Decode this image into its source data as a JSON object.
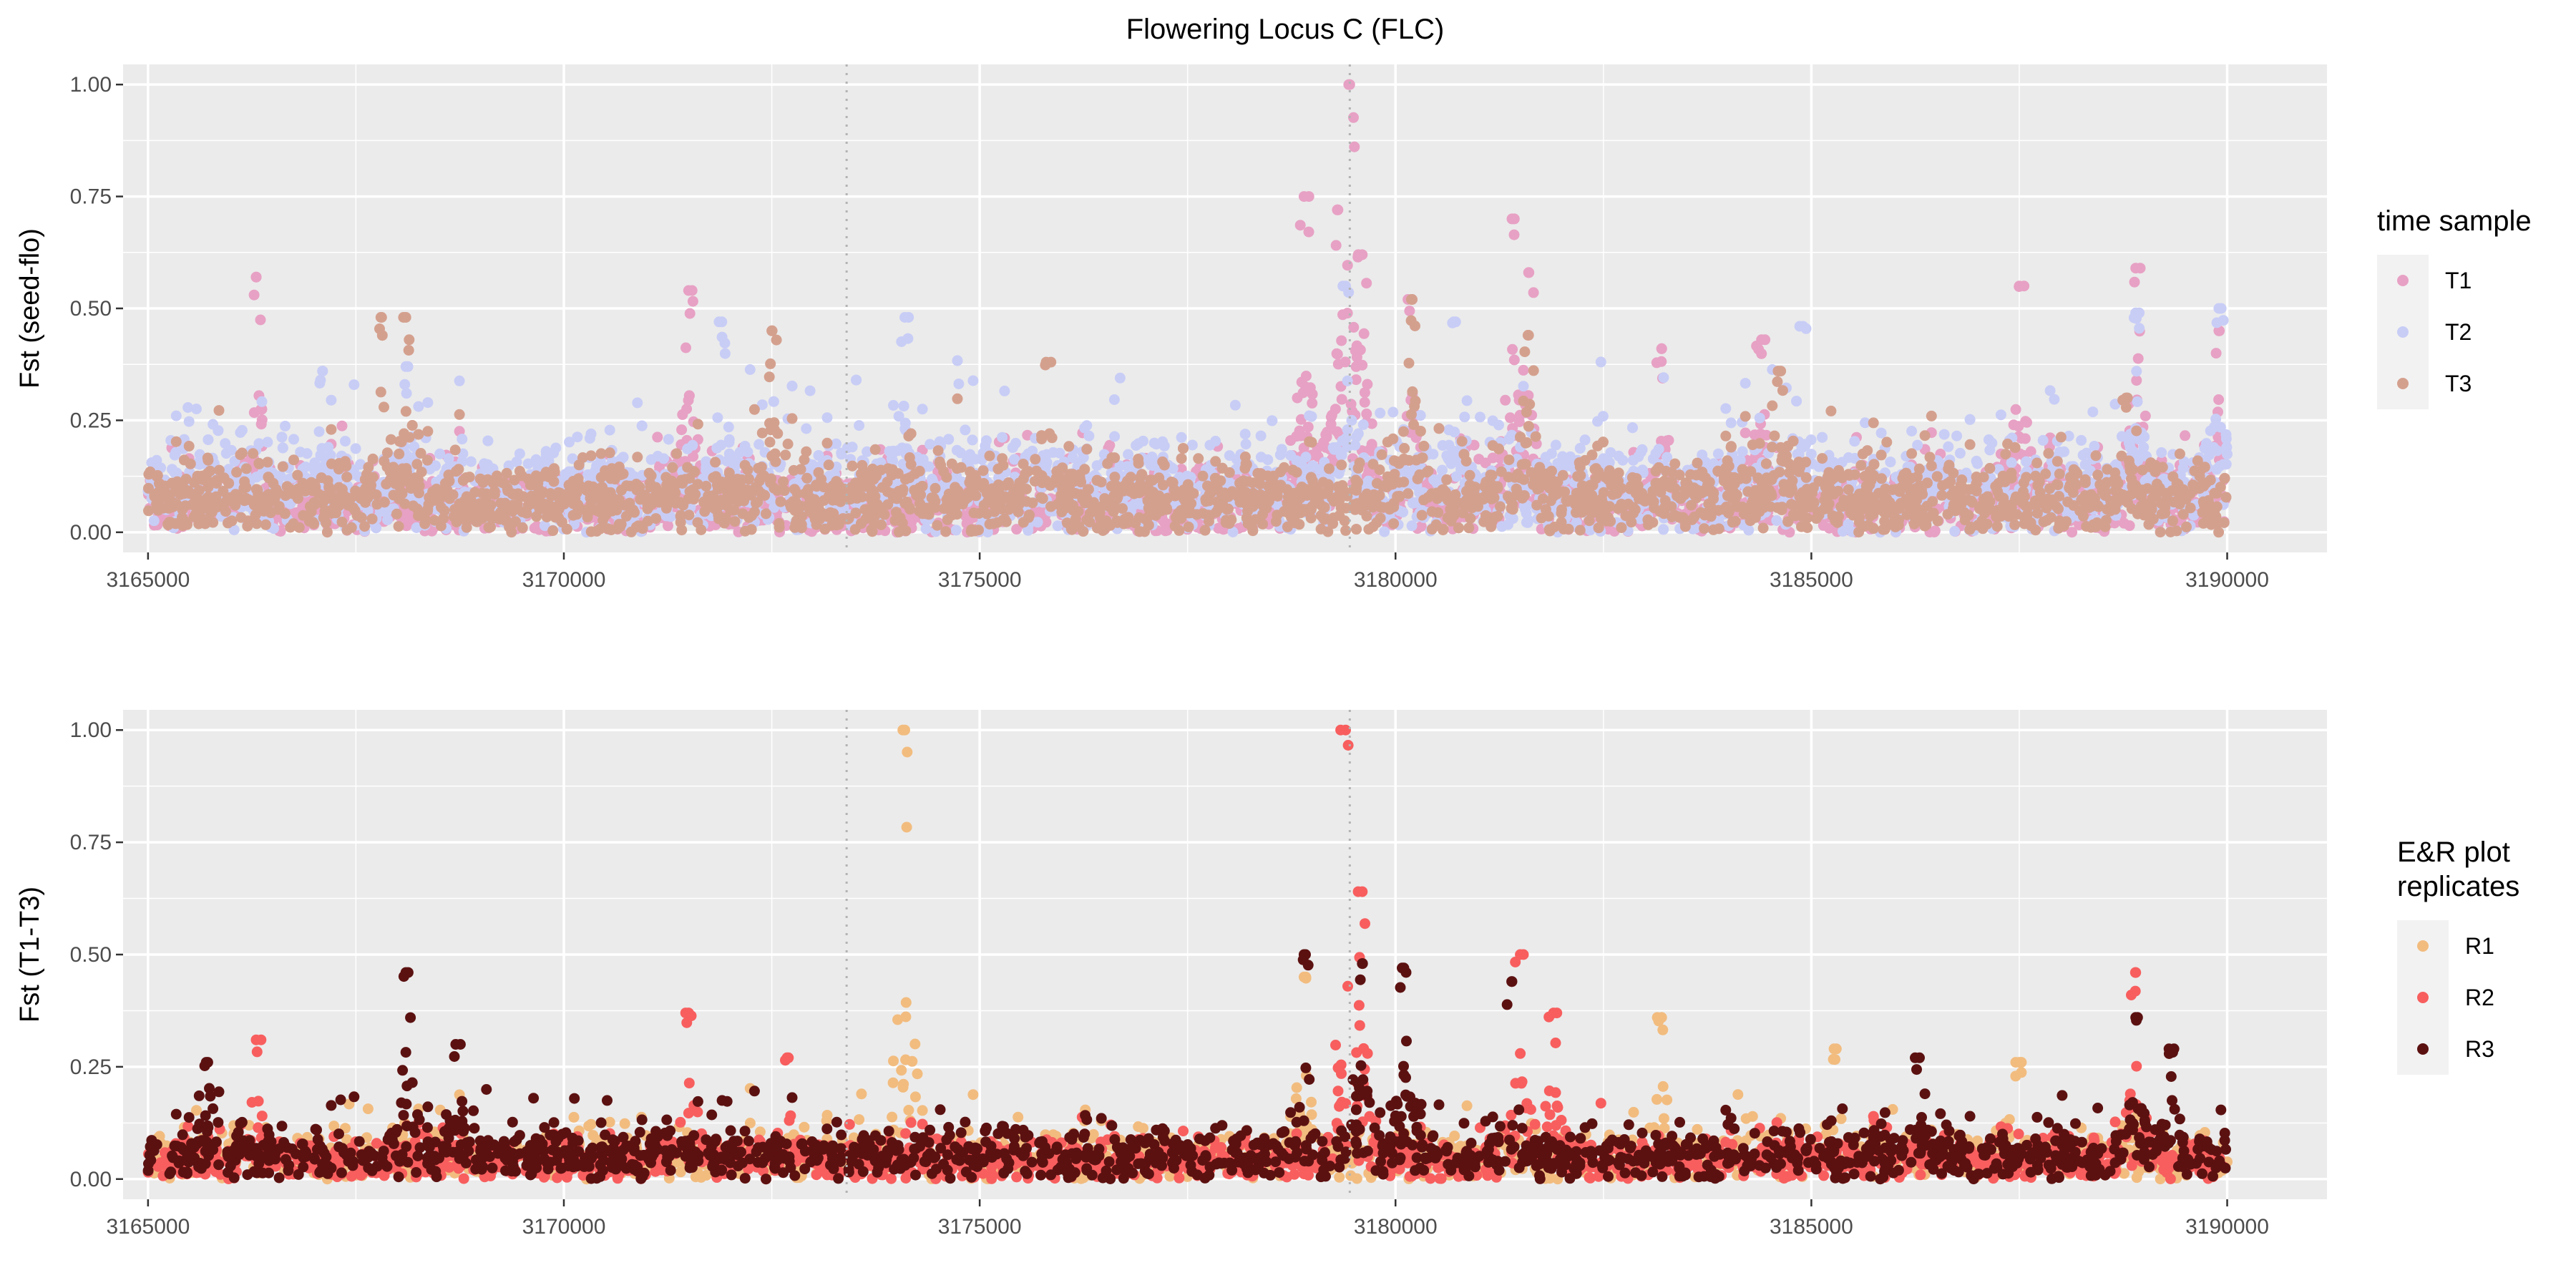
{
  "title": "Flowering Locus C (FLC)",
  "chart_data": [
    {
      "type": "scatter",
      "panel": "top",
      "ylabel": "Fst (seed-flo)",
      "xlabel": "",
      "xlim": [
        3164700,
        3191200
      ],
      "ylim": [
        -0.045,
        1.045
      ],
      "x_ticks": [
        3165000,
        3170000,
        3175000,
        3180000,
        3185000,
        3190000
      ],
      "y_ticks": [
        0.0,
        0.25,
        0.5,
        0.75,
        1.0
      ],
      "x_tick_labels": [
        "3165000",
        "3170000",
        "3175000",
        "3180000",
        "3185000",
        "3190000"
      ],
      "y_tick_labels": [
        "0.00",
        "0.25",
        "0.50",
        "0.75",
        "1.00"
      ],
      "vlines": [
        3173400,
        3179450
      ],
      "grid": true,
      "legend": {
        "title": "time sample",
        "placement": "right",
        "entries": [
          {
            "label": "T1",
            "color": "#E7A1C4"
          },
          {
            "label": "T2",
            "color": "#C8CDF6"
          },
          {
            "label": "T3",
            "color": "#D4A08E"
          }
        ]
      },
      "series": [
        {
          "name": "T1",
          "color": "#E7A1C4",
          "n_points_approx": 2800,
          "base_level": 0.06,
          "peaks": [
            [
              3166300,
              0.57
            ],
            [
              3171500,
              0.54
            ],
            [
              3178900,
              0.75
            ],
            [
              3179300,
              0.72
            ],
            [
              3179450,
              1.0
            ],
            [
              3179600,
              0.62
            ],
            [
              3180200,
              0.52
            ],
            [
              3181400,
              0.7
            ],
            [
              3181600,
              0.58
            ],
            [
              3183200,
              0.41
            ],
            [
              3184400,
              0.43
            ],
            [
              3187500,
              0.55
            ],
            [
              3188900,
              0.59
            ],
            [
              3189900,
              0.45
            ]
          ]
        },
        {
          "name": "T2",
          "color": "#C8CDF6",
          "n_points_approx": 2800,
          "base_level": 0.09,
          "peaks": [
            [
              3167100,
              0.36
            ],
            [
              3168100,
              0.37
            ],
            [
              3171900,
              0.47
            ],
            [
              3174100,
              0.48
            ],
            [
              3179400,
              0.55
            ],
            [
              3180700,
              0.47
            ],
            [
              3184900,
              0.46
            ],
            [
              3188900,
              0.49
            ],
            [
              3189900,
              0.5
            ]
          ]
        },
        {
          "name": "T3",
          "color": "#D4A08E",
          "n_points_approx": 2800,
          "base_level": 0.07,
          "peaks": [
            [
              3167800,
              0.48
            ],
            [
              3168100,
              0.48
            ],
            [
              3172500,
              0.45
            ],
            [
              3175800,
              0.38
            ],
            [
              3180200,
              0.52
            ],
            [
              3181600,
              0.44
            ],
            [
              3184600,
              0.36
            ],
            [
              3188800,
              0.3
            ]
          ]
        }
      ]
    },
    {
      "type": "scatter",
      "panel": "bottom",
      "ylabel": "Fst (T1-T3)",
      "xlabel": "",
      "xlim": [
        3164700,
        3191200
      ],
      "ylim": [
        -0.045,
        1.045
      ],
      "x_ticks": [
        3165000,
        3170000,
        3175000,
        3180000,
        3185000,
        3190000
      ],
      "y_ticks": [
        0.0,
        0.25,
        0.5,
        0.75,
        1.0
      ],
      "x_tick_labels": [
        "3165000",
        "3170000",
        "3175000",
        "3180000",
        "3185000",
        "3190000"
      ],
      "y_tick_labels": [
        "0.00",
        "0.25",
        "0.50",
        "0.75",
        "1.00"
      ],
      "vlines": [
        3173400,
        3179450
      ],
      "grid": true,
      "legend": {
        "title_lines": [
          "E&R plot",
          "replicates"
        ],
        "placement": "right",
        "entries": [
          {
            "label": "R1",
            "color": "#F2BC7F"
          },
          {
            "label": "R2",
            "color": "#F85E5E"
          },
          {
            "label": "R3",
            "color": "#5C1111"
          }
        ]
      },
      "series": [
        {
          "name": "R1",
          "color": "#F2BC7F",
          "n_points_approx": 1600,
          "base_level": 0.05,
          "peaks": [
            [
              3174100,
              1.0
            ],
            [
              3178900,
              0.45
            ],
            [
              3183200,
              0.36
            ],
            [
              3185300,
              0.29
            ],
            [
              3187500,
              0.26
            ]
          ]
        },
        {
          "name": "R2",
          "color": "#F85E5E",
          "n_points_approx": 1600,
          "base_level": 0.04,
          "peaks": [
            [
              3166300,
              0.31
            ],
            [
              3171500,
              0.37
            ],
            [
              3172700,
              0.27
            ],
            [
              3179400,
              1.0
            ],
            [
              3179600,
              0.64
            ],
            [
              3181500,
              0.5
            ],
            [
              3181900,
              0.37
            ],
            [
              3188900,
              0.46
            ]
          ]
        },
        {
          "name": "R3",
          "color": "#5C1111",
          "n_points_approx": 1600,
          "base_level": 0.05,
          "peaks": [
            [
              3165700,
              0.26
            ],
            [
              3168100,
              0.46
            ],
            [
              3168700,
              0.3
            ],
            [
              3178900,
              0.5
            ],
            [
              3179600,
              0.48
            ],
            [
              3180100,
              0.47
            ],
            [
              3181400,
              0.44
            ],
            [
              3186300,
              0.27
            ],
            [
              3188900,
              0.36
            ],
            [
              3189300,
              0.29
            ]
          ]
        }
      ]
    }
  ]
}
